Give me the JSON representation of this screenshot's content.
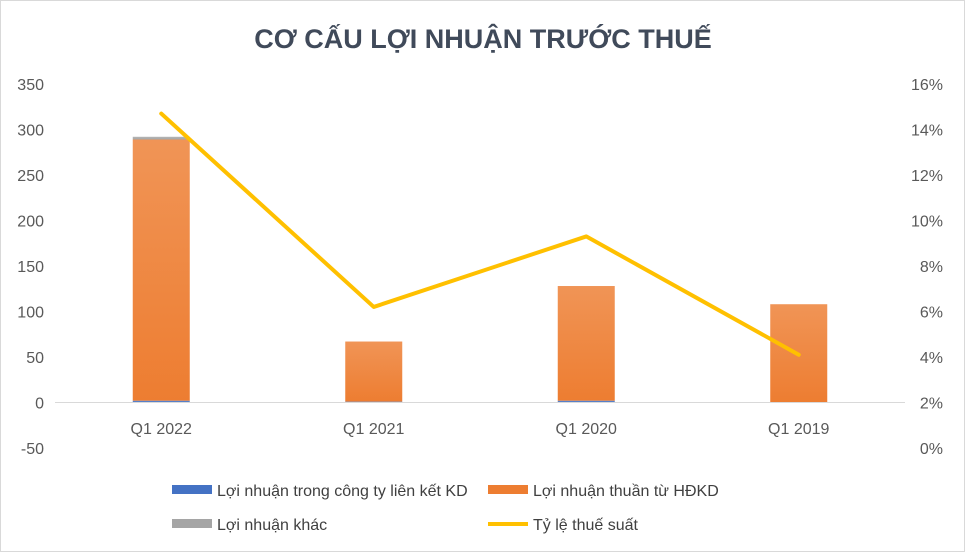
{
  "chart_data": {
    "type": "bar",
    "stacked": true,
    "title": "CƠ CẤU LỢI NHUẬN TRƯỚC THUẾ",
    "categories": [
      "Q1 2022",
      "Q1 2021",
      "Q1 2020",
      "Q1 2019"
    ],
    "series": [
      {
        "name": "Lợi nhuận trong công ty liên kết KD",
        "type": "bar",
        "axis": "left",
        "color": "#4472c4",
        "values": [
          2,
          1,
          2,
          0
        ]
      },
      {
        "name": "Lợi nhuận thuần từ HĐKD",
        "type": "bar",
        "axis": "left",
        "color": "#ed7d31",
        "values": [
          287,
          66,
          126,
          108
        ]
      },
      {
        "name": "Lợi nhuận khác",
        "type": "bar",
        "axis": "left",
        "color": "#a5a5a5",
        "values": [
          3,
          0,
          0,
          0
        ]
      },
      {
        "name": "Tỷ lệ thuế suất",
        "type": "line",
        "axis": "right",
        "color": "#ffc000",
        "values": [
          14.7,
          6.2,
          9.3,
          4.1
        ]
      }
    ],
    "y_left": {
      "min": -50,
      "max": 350,
      "ticks": [
        "350",
        "300",
        "250",
        "200",
        "150",
        "100",
        "50",
        "0",
        "-50"
      ]
    },
    "y_right": {
      "min": 0,
      "max": 16,
      "unit": "%",
      "ticks": [
        "16%",
        "14%",
        "12%",
        "10%",
        "8%",
        "6%",
        "4%",
        "2%",
        "0%"
      ]
    },
    "grid": false,
    "legend": "bottom"
  }
}
